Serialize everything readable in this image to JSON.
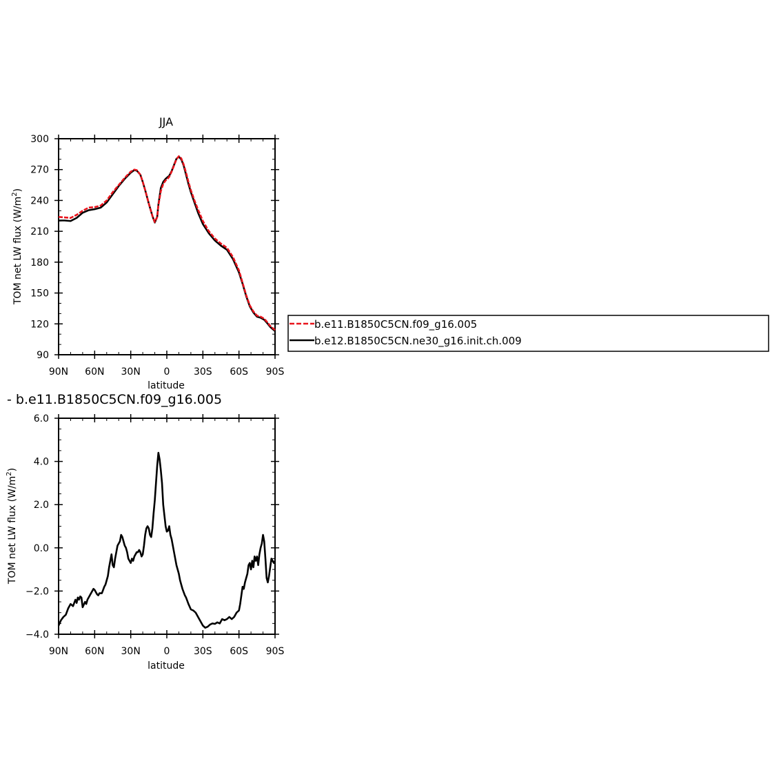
{
  "chart_data": [
    {
      "type": "line",
      "title": "JJA",
      "xlabel": "latitude",
      "ylabel": "TOM net LW flux (W/m",
      "ylabel_sup": "2",
      "ylabel_end": ")",
      "xlim": [
        90,
        -90
      ],
      "ylim": [
        90,
        300
      ],
      "x_ticks": [
        90,
        60,
        30,
        0,
        -30,
        -60,
        -90
      ],
      "x_tick_labels": [
        "90N",
        "60N",
        "30N",
        "0",
        "30S",
        "60S",
        "90S"
      ],
      "y_ticks": [
        90,
        120,
        150,
        180,
        210,
        240,
        270,
        300
      ],
      "y_tick_labels": [
        "90",
        "120",
        "150",
        "180",
        "210",
        "240",
        "270",
        "300"
      ],
      "series": [
        {
          "name": "b.e11.B1850C5CN.f09_g16.005",
          "color": "#e8141c",
          "style": "dashed",
          "x": [
            90,
            85,
            80,
            75,
            70,
            65,
            60,
            55,
            50,
            45,
            40,
            35,
            30,
            27,
            25,
            22,
            20,
            18,
            15,
            12,
            10,
            8,
            7,
            5,
            3,
            1,
            0,
            -2,
            -4,
            -6,
            -8,
            -10,
            -12,
            -14,
            -16,
            -18,
            -20,
            -23,
            -26,
            -30,
            -35,
            -40,
            -45,
            -50,
            -55,
            -60,
            -63,
            -66,
            -69,
            -72,
            -75,
            -78,
            -81,
            -84,
            -86,
            -88,
            -90
          ],
          "y": [
            224,
            223.5,
            223,
            226,
            230,
            233,
            233.5,
            235,
            240,
            248,
            255,
            262,
            268,
            270,
            269.5,
            265,
            258,
            250,
            237,
            225,
            219,
            224,
            235,
            249,
            256,
            259.5,
            260,
            263,
            268,
            274,
            280,
            283,
            281,
            275,
            267,
            258,
            250,
            240,
            231,
            220,
            210,
            203,
            198,
            194,
            185,
            172,
            160,
            148,
            138,
            132,
            128,
            127,
            125,
            121,
            118,
            116,
            114
          ]
        },
        {
          "name": "b.e12.B1850C5CN.ne30_g16.init.ch.009",
          "color": "#000000",
          "style": "solid",
          "x": [
            90,
            85,
            80,
            75,
            70,
            65,
            60,
            55,
            50,
            45,
            40,
            35,
            30,
            27,
            25,
            22,
            20,
            18,
            15,
            12,
            10,
            8,
            7,
            5,
            3,
            1,
            0,
            -2,
            -4,
            -6,
            -8,
            -10,
            -12,
            -14,
            -16,
            -18,
            -20,
            -23,
            -26,
            -30,
            -35,
            -40,
            -45,
            -50,
            -55,
            -60,
            -63,
            -66,
            -69,
            -72,
            -75,
            -78,
            -81,
            -84,
            -86,
            -88,
            -90
          ],
          "y": [
            220.5,
            220.5,
            220,
            223,
            228,
            230.5,
            231.5,
            233,
            238,
            246,
            254,
            261,
            267,
            269.5,
            269,
            265,
            258,
            250,
            237,
            225,
            218.5,
            224,
            236,
            252,
            258,
            261,
            262,
            264,
            268.5,
            274.5,
            280.5,
            282.5,
            280,
            274,
            265,
            256,
            248,
            238,
            228,
            217,
            208,
            201,
            196,
            192,
            183,
            170,
            159,
            147,
            137,
            131,
            127,
            126,
            124,
            120,
            117,
            115,
            113
          ]
        }
      ],
      "legend_position": "right"
    },
    {
      "type": "line",
      "title": "- b.e11.B1850C5CN.f09_g16.005",
      "xlabel": "latitude",
      "ylabel": "TOM net LW flux (W/m",
      "ylabel_sup": "2",
      "ylabel_end": ")",
      "xlim": [
        90,
        -90
      ],
      "ylim": [
        -4,
        6
      ],
      "x_ticks": [
        90,
        60,
        30,
        0,
        -30,
        -60,
        -90
      ],
      "x_tick_labels": [
        "90N",
        "60N",
        "30N",
        "0",
        "30S",
        "60S",
        "90S"
      ],
      "y_ticks": [
        -4,
        -2,
        0,
        2,
        4,
        6
      ],
      "y_tick_labels": [
        "−4.0",
        "−2.0",
        "0.0",
        "2.0",
        "4.0",
        "6.0"
      ],
      "series": [
        {
          "color": "#000000",
          "style": "solid",
          "x": [
            90,
            88,
            86,
            84,
            82,
            80,
            78,
            76,
            75,
            74,
            73,
            72,
            71,
            70,
            68,
            67,
            66,
            64,
            62,
            61,
            60,
            58,
            57,
            56,
            54,
            52,
            51,
            50,
            49,
            48,
            47,
            46,
            45,
            44,
            43,
            42,
            41,
            40,
            39,
            38,
            37,
            36,
            35,
            34,
            33,
            32,
            31,
            30,
            29,
            28,
            27,
            26,
            25,
            24,
            23,
            22,
            21,
            20,
            19,
            18,
            17,
            16,
            15,
            14,
            13,
            12,
            11,
            10,
            9,
            8,
            7,
            6,
            5,
            4,
            3,
            2,
            1,
            0,
            -1,
            -2,
            -3,
            -4,
            -5,
            -6,
            -7,
            -8,
            -9,
            -10,
            -11,
            -12,
            -13,
            -14,
            -15,
            -16,
            -18,
            -20,
            -22,
            -24,
            -26,
            -28,
            -30,
            -32,
            -34,
            -36,
            -38,
            -40,
            -42,
            -44,
            -46,
            -48,
            -50,
            -52,
            -54,
            -56,
            -58,
            -60,
            -61,
            -62,
            -63,
            -64,
            -65,
            -66,
            -67,
            -68,
            -69,
            -70,
            -71,
            -72,
            -73,
            -74,
            -75,
            -76,
            -77,
            -78,
            -79,
            -80,
            -81,
            -82,
            -83,
            -84,
            -85,
            -86,
            -87,
            -88,
            -89,
            -90
          ],
          "y": [
            -3.6,
            -3.35,
            -3.2,
            -3.1,
            -2.8,
            -2.6,
            -2.7,
            -2.4,
            -2.55,
            -2.3,
            -2.4,
            -2.25,
            -2.3,
            -2.75,
            -2.5,
            -2.6,
            -2.4,
            -2.2,
            -2.0,
            -1.9,
            -1.95,
            -2.15,
            -2.2,
            -2.1,
            -2.1,
            -1.8,
            -1.7,
            -1.5,
            -1.3,
            -0.9,
            -0.6,
            -0.3,
            -0.8,
            -0.9,
            -0.5,
            -0.2,
            0.1,
            0.2,
            0.3,
            0.6,
            0.5,
            0.3,
            0.1,
            0.0,
            -0.2,
            -0.5,
            -0.6,
            -0.7,
            -0.5,
            -0.6,
            -0.4,
            -0.3,
            -0.2,
            -0.2,
            -0.1,
            -0.2,
            -0.4,
            -0.3,
            0.1,
            0.6,
            0.9,
            1.0,
            0.9,
            0.6,
            0.5,
            0.9,
            1.6,
            2.2,
            3.0,
            3.8,
            4.4,
            4.1,
            3.6,
            3.0,
            2.0,
            1.5,
            1.0,
            0.75,
            0.8,
            1.0,
            0.6,
            0.4,
            0.1,
            -0.2,
            -0.5,
            -0.8,
            -1.0,
            -1.2,
            -1.5,
            -1.7,
            -1.9,
            -2.05,
            -2.2,
            -2.3,
            -2.6,
            -2.85,
            -2.9,
            -3.0,
            -3.2,
            -3.4,
            -3.6,
            -3.7,
            -3.65,
            -3.55,
            -3.5,
            -3.52,
            -3.45,
            -3.5,
            -3.3,
            -3.35,
            -3.3,
            -3.2,
            -3.3,
            -3.2,
            -3.0,
            -2.9,
            -2.6,
            -2.2,
            -1.8,
            -1.9,
            -1.6,
            -1.4,
            -1.2,
            -0.8,
            -0.7,
            -1.0,
            -0.6,
            -0.9,
            -0.4,
            -0.6,
            -0.4,
            -0.8,
            -0.3,
            0.0,
            0.2,
            0.6,
            0.3,
            -0.5,
            -1.4,
            -1.6,
            -1.3,
            -0.9,
            -0.5,
            -0.6,
            -0.7,
            -0.6
          ]
        }
      ]
    }
  ]
}
